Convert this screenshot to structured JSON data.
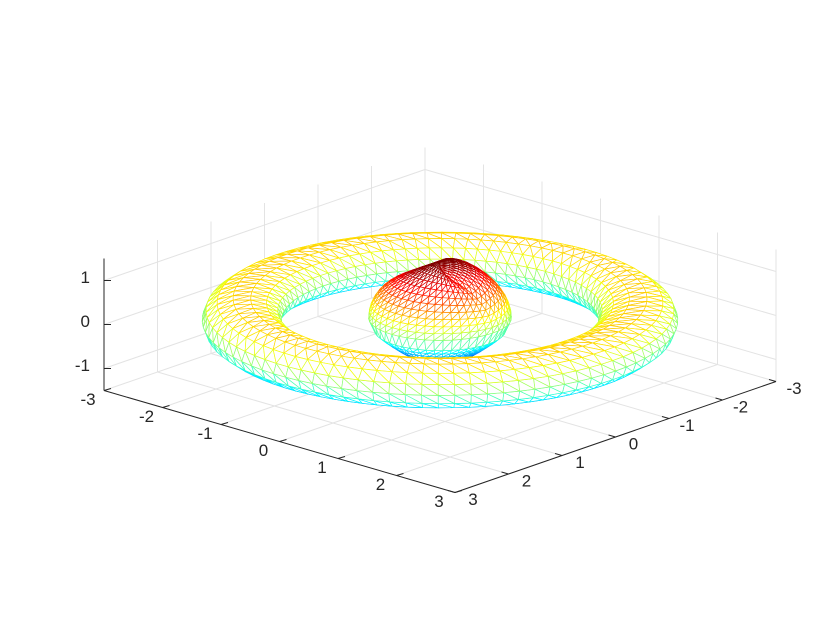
{
  "chart_data": {
    "type": "surface3d",
    "title": "",
    "xlabel": "",
    "ylabel": "",
    "zlabel": "",
    "colormap": "jet",
    "render": "triangulated mesh edges",
    "grid": true,
    "box": false,
    "xlim": [
      -3,
      3
    ],
    "ylim": [
      -3,
      3
    ],
    "zlim": [
      -1.5,
      1.5
    ],
    "x_ticks": [
      -3,
      -2,
      -1,
      0,
      1,
      2,
      3
    ],
    "y_ticks": [
      -3,
      -2,
      -1,
      0,
      1,
      2,
      3
    ],
    "z_ticks": [
      -1,
      0,
      1
    ],
    "x_tick_labels": [
      "-3",
      "-2",
      "-1",
      "0",
      "1",
      "2",
      "3"
    ],
    "y_tick_labels": [
      "-3",
      "-2",
      "-1",
      "0",
      "1",
      "2",
      "3"
    ],
    "z_tick_labels": [
      "-1",
      "0",
      "1"
    ],
    "objects": [
      {
        "shape": "torus",
        "center": [
          0,
          0,
          0
        ],
        "major_radius": 2.5,
        "minor_radius": 0.5
      },
      {
        "shape": "heart",
        "center": [
          0,
          0,
          0
        ],
        "extent_xy": [
          -1,
          1
        ],
        "extent_z": [
          -1.1,
          1.2
        ]
      }
    ]
  }
}
